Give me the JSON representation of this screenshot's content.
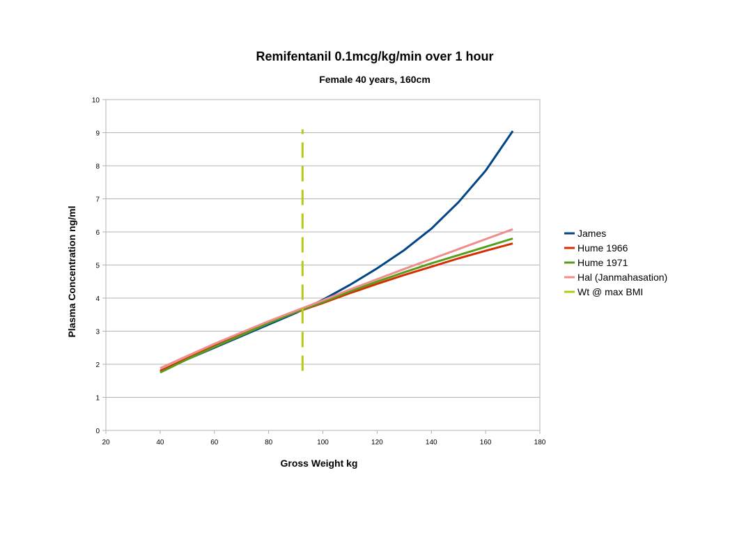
{
  "chart_data": {
    "type": "line",
    "title": "Remifentanil 0.1mcg/kg/min over 1 hour",
    "subtitle": "Female 40 years, 160cm",
    "xlabel": "Gross Weight kg",
    "ylabel": "Plasma Concentration ng/ml",
    "xlim": [
      20,
      180
    ],
    "ylim": [
      0,
      10
    ],
    "x_ticks": [
      20,
      40,
      60,
      80,
      100,
      120,
      140,
      160,
      180
    ],
    "y_ticks": [
      0,
      1,
      2,
      3,
      4,
      5,
      6,
      7,
      8,
      9,
      10
    ],
    "grid": "horizontal",
    "legend_position": "right",
    "series": [
      {
        "name": "James",
        "color": "#004586",
        "style": "solid",
        "x": [
          40,
          50,
          60,
          70,
          80,
          90,
          100,
          110,
          120,
          130,
          140,
          150,
          160,
          170
        ],
        "y": [
          1.8,
          2.15,
          2.5,
          2.85,
          3.2,
          3.55,
          3.95,
          4.4,
          4.9,
          5.45,
          6.1,
          6.9,
          7.85,
          9.05
        ]
      },
      {
        "name": "Hume 1966",
        "color": "#d62e00",
        "style": "solid",
        "x": [
          40,
          50,
          60,
          70,
          80,
          90,
          100,
          110,
          120,
          130,
          140,
          150,
          160,
          170
        ],
        "y": [
          1.8,
          2.18,
          2.55,
          2.9,
          3.25,
          3.57,
          3.85,
          4.15,
          4.43,
          4.7,
          4.95,
          5.2,
          5.43,
          5.65
        ]
      },
      {
        "name": "Hume 1971",
        "color": "#579d1c",
        "style": "solid",
        "x": [
          40,
          50,
          60,
          70,
          80,
          90,
          100,
          110,
          120,
          130,
          140,
          150,
          160,
          170
        ],
        "y": [
          1.75,
          2.15,
          2.52,
          2.88,
          3.24,
          3.58,
          3.88,
          4.2,
          4.5,
          4.78,
          5.05,
          5.3,
          5.55,
          5.8
        ]
      },
      {
        "name": "Hal (Janmahasation)",
        "color": "#f08c8c",
        "style": "solid",
        "x": [
          40,
          50,
          60,
          70,
          80,
          90,
          100,
          110,
          120,
          130,
          140,
          150,
          160,
          170
        ],
        "y": [
          1.88,
          2.25,
          2.62,
          2.96,
          3.3,
          3.62,
          3.93,
          4.26,
          4.57,
          4.88,
          5.18,
          5.48,
          5.78,
          6.08
        ]
      },
      {
        "name": "Wt @ max BMI",
        "color": "#b4c814",
        "style": "dashed",
        "x": [
          92.5,
          92.5
        ],
        "y": [
          1.8,
          9.1
        ]
      }
    ]
  }
}
